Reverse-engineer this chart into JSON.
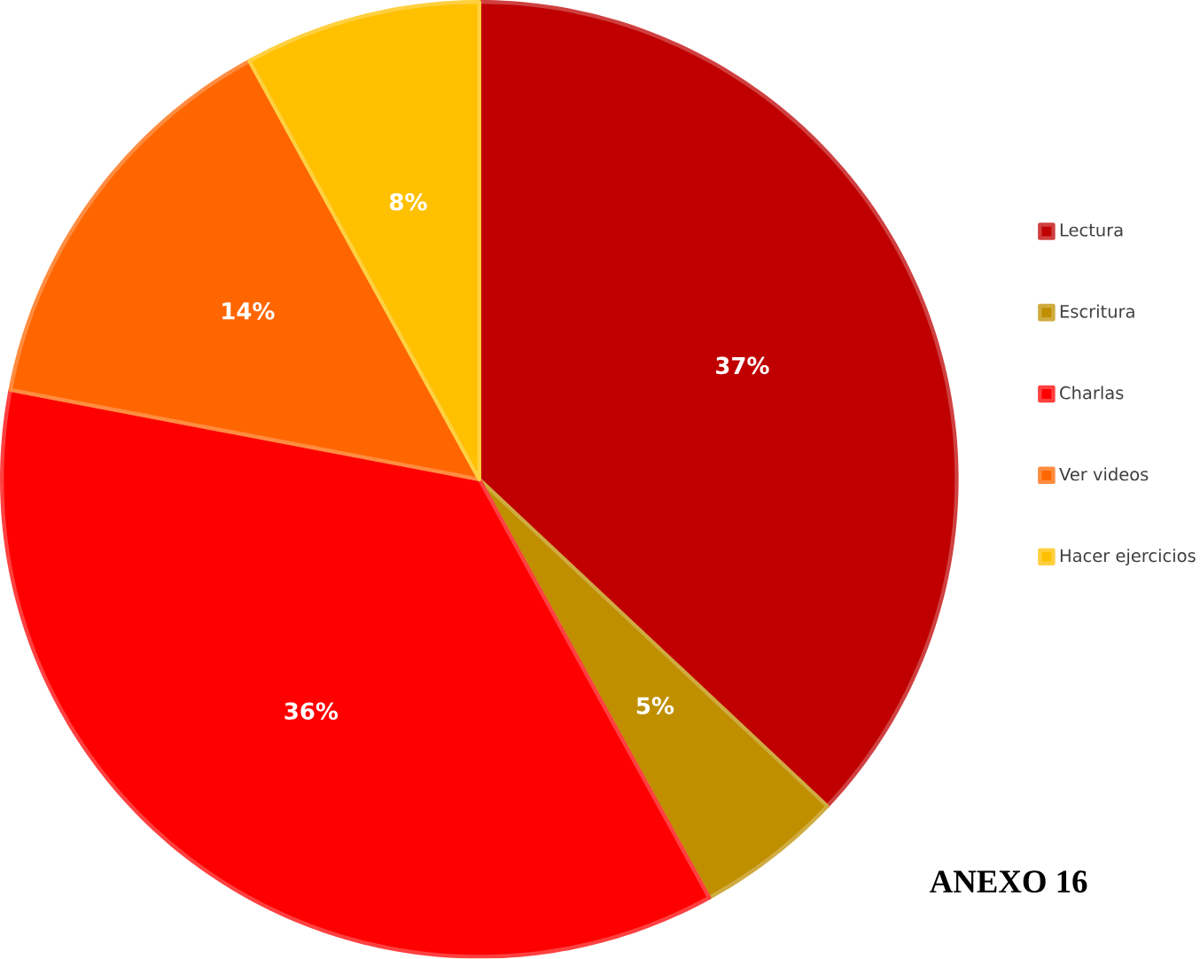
{
  "chart_data": {
    "type": "pie",
    "categories": [
      "Lectura",
      "Escritura",
      "Charlas",
      "Ver videos",
      "Hacer ejercicios"
    ],
    "values": [
      37,
      5,
      36,
      14,
      8
    ],
    "colors": [
      "#c00000",
      "#bf8f00",
      "#ff0000",
      "#ff6600",
      "#ffc000"
    ],
    "value_labels": [
      "37%",
      "5%",
      "36%",
      "14%",
      "8%"
    ],
    "legend": "right",
    "annotations": [
      "ANEXO 16"
    ]
  }
}
